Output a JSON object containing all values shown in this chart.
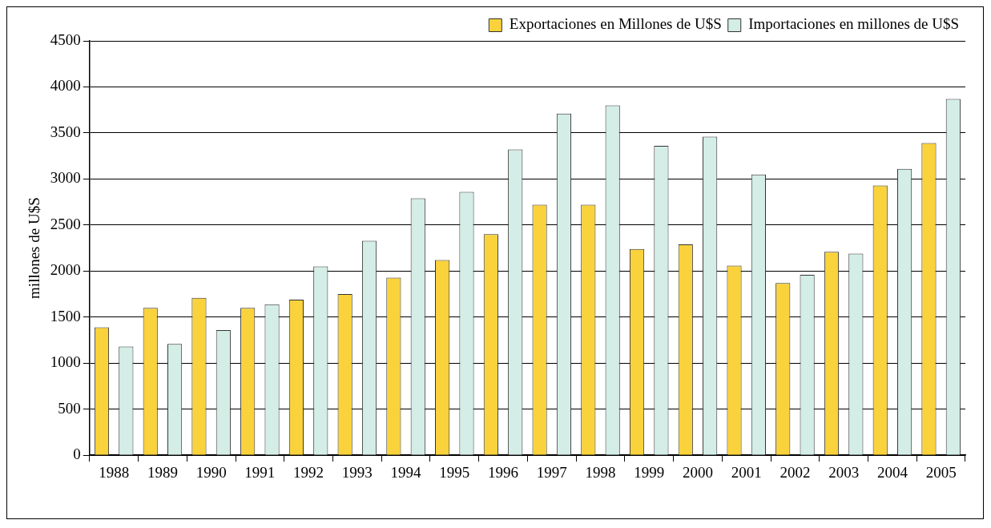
{
  "chart_data": {
    "type": "bar",
    "ylabel": "millones de U$S",
    "categories": [
      "1988",
      "1989",
      "1990",
      "1991",
      "1992",
      "1993",
      "1994",
      "1995",
      "1996",
      "1997",
      "1998",
      "1999",
      "2000",
      "2001",
      "2002",
      "2003",
      "2004",
      "2005"
    ],
    "series": [
      {
        "name": "Exportaciones en Millones de U$S",
        "color": "#f9d23c",
        "values": [
          1390,
          1600,
          1710,
          1600,
          1690,
          1750,
          1930,
          2120,
          2400,
          2720,
          2720,
          2240,
          2290,
          2060,
          1870,
          2210,
          2930,
          3390
        ]
      },
      {
        "name": "Importaciones en millones de U$S",
        "color": "#d4ede6",
        "values": [
          1180,
          1210,
          1360,
          1640,
          2050,
          2330,
          2790,
          2860,
          3320,
          3710,
          3800,
          3360,
          3460,
          3050,
          1960,
          2190,
          3110,
          3870
        ]
      }
    ],
    "ylim": [
      0,
      4500
    ],
    "yticks": [
      0,
      500,
      1000,
      1500,
      2000,
      2500,
      3000,
      3500,
      4000,
      4500
    ],
    "grid": "y",
    "legend": "top right"
  }
}
